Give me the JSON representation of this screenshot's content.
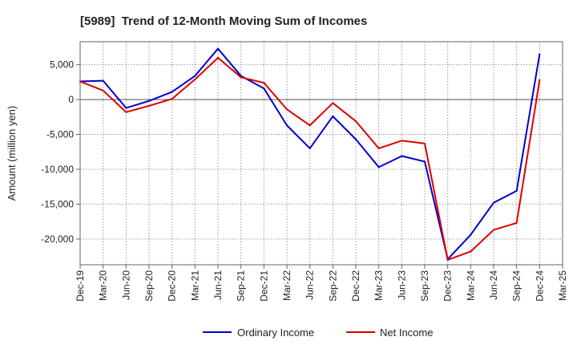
{
  "chart_data": {
    "type": "line",
    "title": "[5989]  Trend of 12-Month Moving Sum of Incomes",
    "xlabel": "",
    "ylabel": "Amount (million yen)",
    "categories": [
      "Dec-19",
      "Mar-20",
      "Jun-20",
      "Sep-20",
      "Dec-20",
      "Mar-21",
      "Jun-21",
      "Sep-21",
      "Dec-21",
      "Mar-22",
      "Jun-22",
      "Sep-22",
      "Dec-22",
      "Mar-23",
      "Jun-23",
      "Sep-23",
      "Dec-23",
      "Mar-24",
      "Jun-24",
      "Sep-24",
      "Dec-24",
      "Mar-25"
    ],
    "yticks": [
      5000,
      0,
      -5000,
      -10000,
      -15000,
      -20000
    ],
    "ytick_labels": [
      "5,000",
      "0",
      "-5,000",
      "-10,000",
      "-15,000",
      "-20,000"
    ],
    "ylim": [
      -23700,
      8300
    ],
    "grid": true,
    "legend": "bottom-center",
    "series": [
      {
        "name": "Ordinary Income",
        "color": "#0000cc",
        "values": [
          2600,
          2700,
          -1200,
          -200,
          1100,
          3400,
          7300,
          3400,
          1600,
          -3700,
          -7000,
          -2400,
          -5700,
          -9700,
          -8100,
          -8900,
          -22900,
          -19400,
          -14800,
          -13100,
          6500,
          null
        ]
      },
      {
        "name": "Net Income",
        "color": "#dd0000",
        "values": [
          2600,
          1300,
          -1800,
          -900,
          100,
          2900,
          6000,
          3200,
          2400,
          -1400,
          -3700,
          -500,
          -3100,
          -7000,
          -5900,
          -6300,
          -23000,
          -21800,
          -18700,
          -17700,
          2800,
          null
        ]
      }
    ]
  }
}
